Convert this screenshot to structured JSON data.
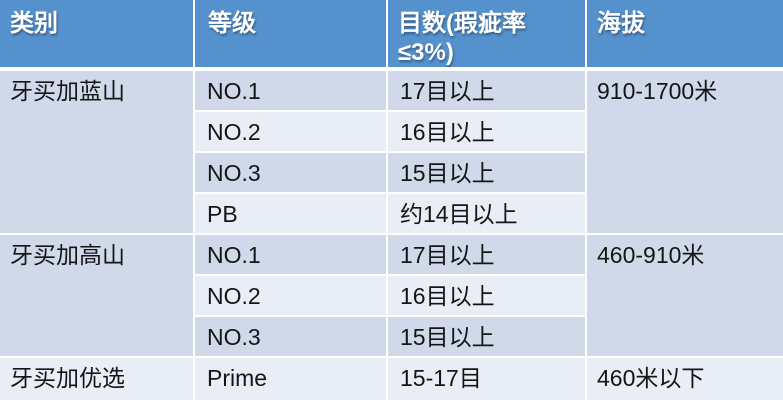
{
  "table": {
    "title_semantic": "jamaica-coffee-grade-table",
    "headers": {
      "category": "类别",
      "grade": "等级",
      "mesh_line1": "目数(瑕疵率",
      "mesh_line2": "≤3%)",
      "altitude": "海拔"
    },
    "groups": [
      {
        "category": "牙买加蓝山",
        "altitude": "910-1700米",
        "rows": [
          {
            "grade": "NO.1",
            "mesh": "17目以上"
          },
          {
            "grade": "NO.2",
            "mesh": "16目以上"
          },
          {
            "grade": "NO.3",
            "mesh": "15目以上"
          },
          {
            "grade": "PB",
            "mesh": "约14目以上"
          }
        ]
      },
      {
        "category": "牙买加高山",
        "altitude": "460-910米",
        "rows": [
          {
            "grade": "NO.1",
            "mesh": "17目以上"
          },
          {
            "grade": "NO.2",
            "mesh": "16目以上"
          },
          {
            "grade": "NO.3",
            "mesh": "15目以上"
          }
        ]
      },
      {
        "category": "牙买加优选",
        "altitude": "460米以下",
        "rows": [
          {
            "grade": "Prime",
            "mesh": "15-17目"
          }
        ]
      }
    ],
    "colors": {
      "header_bg": "#5591cd",
      "band_dark": "#cfd9ea",
      "band_light": "#e9edf5",
      "grid_line": "#ffffff",
      "header_text": "#ffffff",
      "body_text": "#151515"
    }
  }
}
